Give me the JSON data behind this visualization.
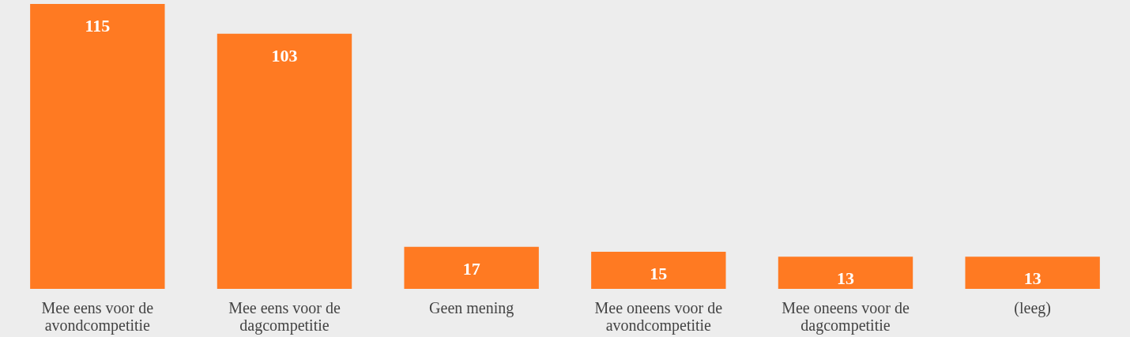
{
  "chart_data": {
    "type": "bar",
    "categories": [
      "Mee eens voor de avondcompetitie",
      "Mee eens voor de dagcompetitie",
      "Geen mening",
      "Mee oneens voor de avondcompetitie",
      "Mee oneens voor de dagcompetitie",
      "(leeg)"
    ],
    "values": [
      115,
      103,
      17,
      15,
      13,
      13
    ],
    "color": "#ff7a22",
    "data_labels": true,
    "grid": false
  }
}
